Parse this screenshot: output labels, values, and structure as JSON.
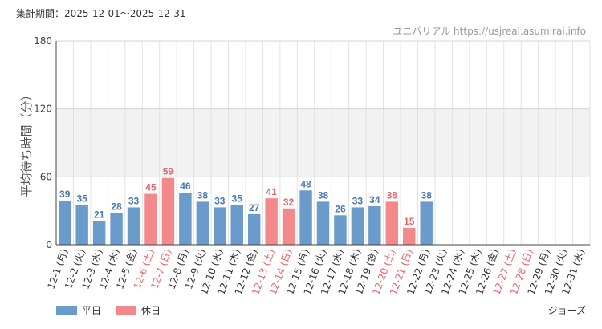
{
  "header": {
    "period": "集計期間：2025-12-01〜2025-12-31",
    "watermark": "ユニバリアル https://usjreal.asumirai.info"
  },
  "footer": {
    "attraction": "ジョーズ"
  },
  "colors": {
    "weekday": "#6b9bca",
    "holiday": "#f4898c",
    "weekday_text": "#4a78b0",
    "holiday_text": "#e8646b",
    "band": "#f2f2f2",
    "grid": "#e2e2e2"
  },
  "chart_data": {
    "type": "bar",
    "ylabel": "平均待ち時間（分）",
    "ylim": [
      0,
      180
    ],
    "yticks": [
      0,
      60,
      120,
      180
    ],
    "shaded_band": [
      60,
      120
    ],
    "grid": true,
    "legend": [
      {
        "name": "平日",
        "kind": "weekday"
      },
      {
        "name": "休日",
        "kind": "holiday"
      }
    ],
    "legend_position": "bottom-left",
    "categories": [
      "12-1 (月)",
      "12-2 (火)",
      "12-3 (水)",
      "12-4 (木)",
      "12-5 (金)",
      "12-6 (土)",
      "12-7 (日)",
      "12-8 (月)",
      "12-9 (火)",
      "12-10 (水)",
      "12-11 (木)",
      "12-12 (金)",
      "12-13 (土)",
      "12-14 (日)",
      "12-15 (月)",
      "12-16 (火)",
      "12-17 (水)",
      "12-18 (木)",
      "12-19 (金)",
      "12-20 (土)",
      "12-21 (日)",
      "12-22 (月)",
      "12-23 (火)",
      "12-24 (水)",
      "12-25 (木)",
      "12-26 (金)",
      "12-27 (土)",
      "12-28 (日)",
      "12-29 (月)",
      "12-30 (火)",
      "12-31 (水)"
    ],
    "day_types": [
      "weekday",
      "weekday",
      "weekday",
      "weekday",
      "weekday",
      "holiday",
      "holiday",
      "weekday",
      "weekday",
      "weekday",
      "weekday",
      "weekday",
      "holiday",
      "holiday",
      "weekday",
      "weekday",
      "weekday",
      "weekday",
      "weekday",
      "holiday",
      "holiday",
      "weekday",
      "weekday",
      "weekday",
      "weekday",
      "weekday",
      "holiday",
      "holiday",
      "weekday",
      "weekday",
      "weekday"
    ],
    "values": [
      39,
      35,
      21,
      28,
      33,
      45,
      59,
      46,
      38,
      33,
      35,
      27,
      41,
      32,
      48,
      38,
      26,
      33,
      34,
      38,
      15,
      38,
      null,
      null,
      null,
      null,
      null,
      null,
      null,
      null,
      null
    ]
  }
}
